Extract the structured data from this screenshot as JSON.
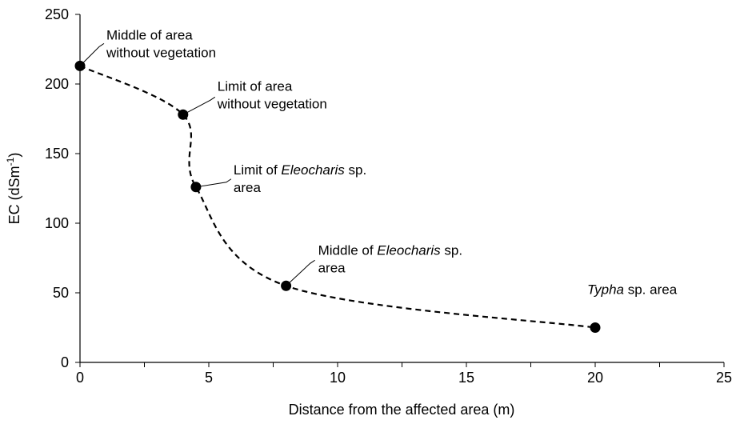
{
  "chart_data": {
    "type": "line",
    "x_label": "Distance from the affected area (m)",
    "y_label": [
      {
        "text": "EC (dSm"
      },
      {
        "text": "-1",
        "sup": true
      },
      {
        "text": ")"
      }
    ],
    "series": [
      {
        "color": "#000000",
        "dashed": true,
        "smooth": true,
        "x": [
          0,
          4,
          4.5,
          8,
          20
        ],
        "values": [
          213,
          178,
          126,
          55,
          25
        ]
      }
    ],
    "annotations": [
      {
        "point": 0,
        "lines": [
          [
            {
              "text": "Middle of  area"
            }
          ],
          [
            {
              "text": "without vegetation"
            }
          ]
        ]
      },
      {
        "point": 1,
        "lines": [
          [
            {
              "text": "Limit of area"
            }
          ],
          [
            {
              "text": "without vegetation"
            }
          ]
        ]
      },
      {
        "point": 2,
        "lines": [
          [
            {
              "text": "Limit of "
            },
            {
              "text": "Eleocharis",
              "italic": true
            },
            {
              "text": " sp."
            }
          ],
          [
            {
              "text": "area"
            }
          ]
        ]
      },
      {
        "point": 3,
        "lines": [
          [
            {
              "text": "Middle of "
            },
            {
              "text": "Eleocharis",
              "italic": true
            },
            {
              "text": " sp."
            }
          ],
          [
            {
              "text": "area"
            }
          ]
        ]
      },
      {
        "point": 4,
        "lines": [
          [
            {
              "text": "Typha",
              "italic": true
            },
            {
              "text": " sp. area"
            }
          ]
        ]
      }
    ],
    "xlim": [
      0,
      25
    ],
    "xticks": [
      0,
      5,
      10,
      15,
      20,
      25
    ],
    "xminor_ticks": [
      2.5,
      7.5,
      12.5,
      17.5,
      22.5
    ],
    "ylim": [
      0,
      250
    ],
    "yticks": [
      0,
      50,
      100,
      150,
      200,
      250
    ],
    "grid": false
  }
}
